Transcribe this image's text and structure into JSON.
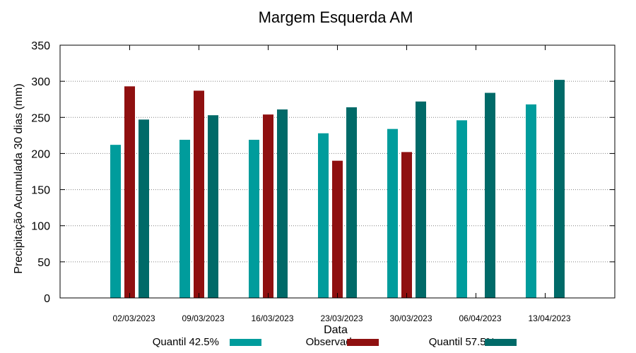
{
  "chart_data": {
    "type": "bar",
    "title": "Margem Esquerda AM",
    "xlabel": "Data",
    "ylabel": "Precipitação Acumulada 30 dias (mm)",
    "ylim": [
      0,
      350
    ],
    "yticks": [
      0,
      50,
      100,
      150,
      200,
      250,
      300,
      350
    ],
    "grid": "horizontal dotted",
    "legend_position": "bottom",
    "categories": [
      "02/03/2023",
      "09/03/2023",
      "16/03/2023",
      "23/03/2023",
      "30/03/2023",
      "06/04/2023",
      "13/04/2023"
    ],
    "series": [
      {
        "name": "Quantil 42.5%",
        "color": "#009c9c",
        "values": [
          212,
          219,
          219,
          228,
          234,
          246,
          268
        ]
      },
      {
        "name": "Observado",
        "color": "#8f1010",
        "values": [
          293,
          287,
          254,
          190,
          202,
          null,
          null
        ]
      },
      {
        "name": "Quantil 57.5%",
        "color": "#006a68",
        "values": [
          247,
          253,
          261,
          264,
          272,
          284,
          302
        ]
      }
    ]
  }
}
